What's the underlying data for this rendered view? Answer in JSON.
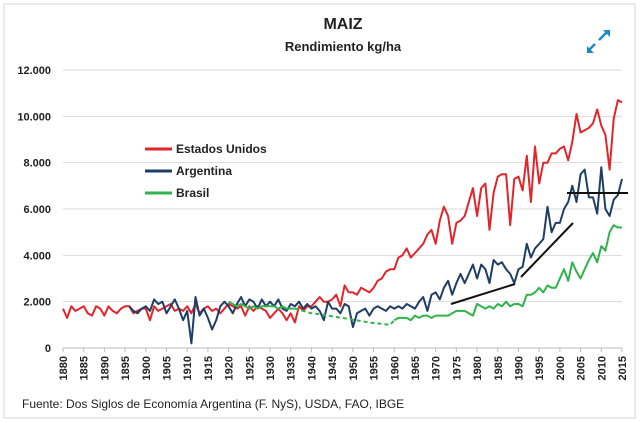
{
  "chart_data": {
    "type": "line",
    "title": "MAIZ",
    "subtitle": "Rendimiento kg/ha",
    "source": "Fuente: Dos Siglos de Economía Argentina (F. NyS), USDA, FAO, IBGE",
    "xlim": [
      1880,
      2015
    ],
    "xticks": [
      1880,
      1885,
      1890,
      1895,
      1900,
      1905,
      1910,
      1915,
      1920,
      1925,
      1930,
      1935,
      1940,
      1945,
      1950,
      1955,
      1960,
      1965,
      1970,
      1975,
      1980,
      1985,
      1990,
      1995,
      2000,
      2005,
      2010,
      2015
    ],
    "ylim": [
      0,
      12000
    ],
    "yticks": [
      0,
      {
        "value": 2000,
        "label": "2.000"
      },
      {
        "value": 4000,
        "label": "4.000"
      },
      {
        "value": 6000,
        "label": "6.000"
      },
      {
        "value": 8000,
        "label": "8.000"
      },
      {
        "value": 10000,
        "label": "10.000"
      },
      {
        "value": 12000,
        "label": "12.000"
      }
    ],
    "grid": true,
    "legend": "left",
    "series": [
      {
        "name": "Estados Unidos",
        "color": "#e0262b",
        "values": [
          1700,
          1300,
          1800,
          1600,
          1700,
          1800,
          1500,
          1400,
          1800,
          1700,
          1400,
          1800,
          1600,
          1500,
          1700,
          1800,
          1800,
          1500,
          1600,
          1700,
          1700,
          1200,
          1800,
          1600,
          1700,
          1800,
          1900,
          1600,
          1700,
          1600,
          1800,
          1500,
          1900,
          1500,
          1700,
          1800,
          1600,
          1700,
          1500,
          1700,
          1900,
          1800,
          1700,
          1800,
          1400,
          1800,
          1600,
          1800,
          1700,
          1600,
          1300,
          1500,
          1700,
          1500,
          1200,
          1500,
          1100,
          1800,
          1600,
          1800,
          1800,
          2000,
          2200,
          2000,
          2000,
          2100,
          2300,
          1800,
          2700,
          2400,
          2400,
          2300,
          2600,
          2500,
          2400,
          2600,
          2900,
          3000,
          3300,
          3400,
          3400,
          3900,
          4000,
          4300,
          3900,
          4100,
          4300,
          4500,
          4900,
          5100,
          4500,
          5500,
          6100,
          5700,
          4500,
          5400,
          5500,
          5700,
          6300,
          6900,
          5700,
          6900,
          7100,
          5100,
          6700,
          7400,
          7500,
          7500,
          5300,
          7300,
          7400,
          6800,
          8300,
          6300,
          8700,
          7100,
          8000,
          8000,
          8400,
          8400,
          8600,
          8700,
          8100,
          8900,
          10100,
          9300,
          9400,
          9500,
          9700,
          10300,
          9600,
          9200,
          7700,
          9900,
          10700,
          10600
        ]
      },
      {
        "name": "Argentina",
        "color": "#1f3e66",
        "values": [
          null,
          null,
          null,
          null,
          null,
          null,
          null,
          null,
          null,
          null,
          null,
          null,
          null,
          null,
          null,
          null,
          1800,
          1600,
          1500,
          1700,
          1800,
          1600,
          2100,
          1900,
          2000,
          1500,
          1800,
          2100,
          1700,
          1200,
          1600,
          200,
          2200,
          1400,
          1700,
          1300,
          800,
          1200,
          1800,
          2000,
          1800,
          1500,
          1900,
          2200,
          1800,
          2100,
          2000,
          1700,
          2100,
          1800,
          2000,
          1800,
          2100,
          1700,
          1600,
          1900,
          1800,
          2000,
          1700,
          1900,
          1700,
          1800,
          1600,
          1200,
          2000,
          1700,
          1700,
          1500,
          1900,
          1800,
          900,
          1500,
          1600,
          1700,
          1400,
          1700,
          1800,
          1700,
          1600,
          1800,
          1700,
          1800,
          1700,
          1900,
          1800,
          1700,
          2000,
          2200,
          1600,
          2300,
          2400,
          2100,
          2600,
          2900,
          2300,
          2800,
          3200,
          2800,
          3200,
          3600,
          3000,
          3600,
          3400,
          2800,
          3800,
          3600,
          3700,
          3400,
          3200,
          2800,
          3400,
          3500,
          4500,
          3900,
          4300,
          4500,
          4700,
          6100,
          5000,
          5400,
          5400,
          6000,
          6300,
          7000,
          6300,
          7500,
          7700,
          6500,
          6500,
          5800,
          7800,
          6000,
          5700,
          6400,
          6600,
          7300
        ]
      },
      {
        "name": "Brasil",
        "color": "#2fb34a",
        "dashed_range": [
          1936,
          1960
        ],
        "values": [
          null,
          null,
          null,
          null,
          null,
          null,
          null,
          null,
          null,
          null,
          null,
          null,
          null,
          null,
          null,
          null,
          null,
          null,
          null,
          null,
          null,
          null,
          null,
          null,
          null,
          null,
          null,
          null,
          null,
          null,
          null,
          null,
          null,
          null,
          null,
          null,
          null,
          null,
          null,
          null,
          2000,
          1900,
          1800,
          1900,
          1800,
          1700,
          1800,
          1700,
          1800,
          1800,
          1800,
          1800,
          1700,
          1800,
          1700,
          1700,
          1700,
          1650,
          1600,
          1550,
          1500,
          1480,
          1450,
          1420,
          1400,
          1370,
          1340,
          1310,
          1280,
          1250,
          1220,
          1190,
          1160,
          1130,
          1100,
          1080,
          1060,
          1040,
          1020,
          1000,
          1200,
          1300,
          1300,
          1300,
          1200,
          1400,
          1300,
          1400,
          1400,
          1300,
          1400,
          1400,
          1400,
          1400,
          1500,
          1600,
          1600,
          1600,
          1500,
          1400,
          1900,
          1800,
          1700,
          1800,
          1700,
          1900,
          1800,
          2000,
          1800,
          1900,
          1900,
          1800,
          2300,
          2300,
          2400,
          2600,
          2400,
          2700,
          2600,
          2600,
          3000,
          3400,
          2900,
          3700,
          3300,
          3000,
          3400,
          3800,
          4100,
          3700,
          4400,
          4200,
          5000,
          5300,
          5200,
          5200
        ]
      }
    ]
  }
}
